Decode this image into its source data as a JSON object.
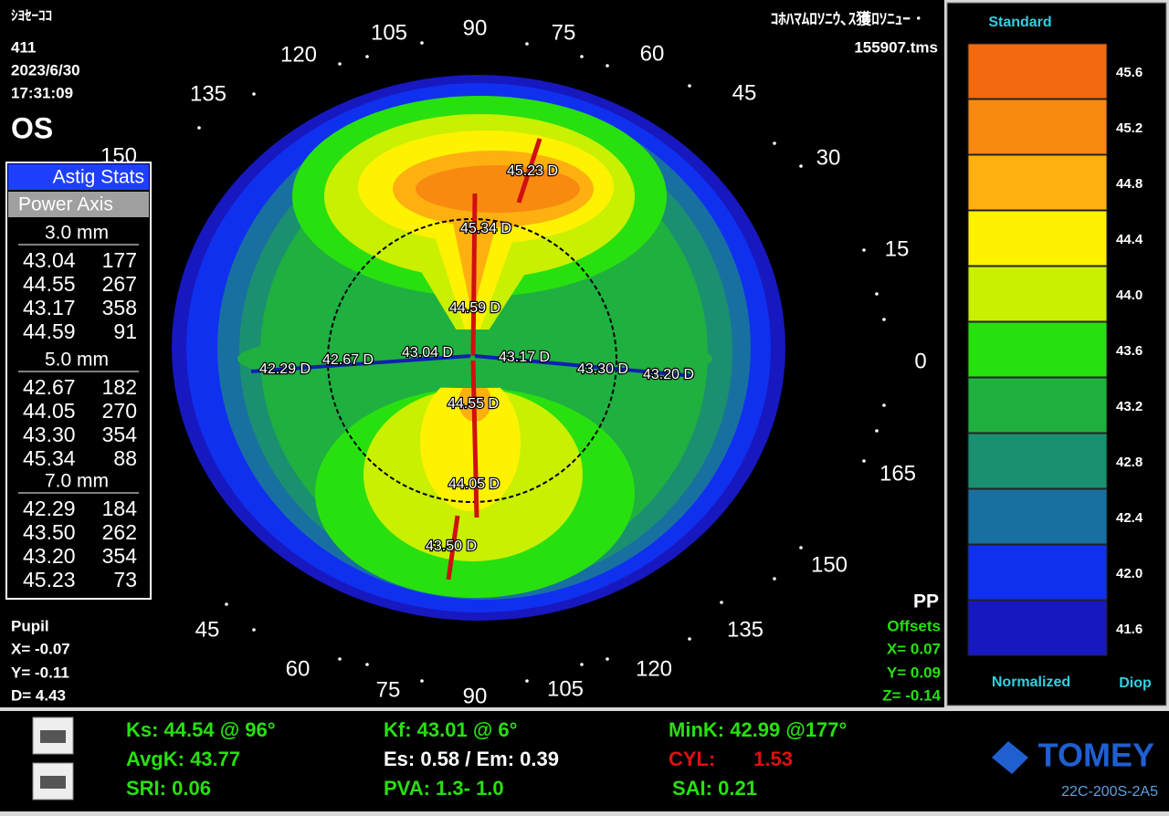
{
  "header": {
    "name": "ｼﾖｾｰｺｺ",
    "id": "411",
    "date": "2023/6/30",
    "time": "17:31:09",
    "eye": "OS",
    "device_text": "ｺﾎﾊﾏﾑﾛｿﾆｳ､ｽ獲ﾛｿﾆｭｰ ･",
    "file": "155907.tms"
  },
  "astig_stats": {
    "title": "Astig Stats",
    "columns": "Power Axis",
    "zones": [
      {
        "label": "3.0 mm",
        "rows": [
          [
            "43.04",
            "177"
          ],
          [
            "44.55",
            "267"
          ],
          [
            "43.17",
            "358"
          ],
          [
            "44.59",
            "91"
          ]
        ]
      },
      {
        "label": "5.0 mm",
        "rows": [
          [
            "42.67",
            "182"
          ],
          [
            "44.05",
            "270"
          ],
          [
            "43.30",
            "354"
          ],
          [
            "45.34",
            "88"
          ]
        ]
      },
      {
        "label": "7.0 mm",
        "rows": [
          [
            "42.29",
            "184"
          ],
          [
            "43.50",
            "262"
          ],
          [
            "43.20",
            "354"
          ],
          [
            "45.23",
            "73"
          ]
        ]
      }
    ]
  },
  "angle_labels": [
    "150",
    "135",
    "120",
    "105",
    "90",
    "75",
    "60",
    "45",
    "30",
    "15",
    "0",
    "165",
    "150",
    "135",
    "120",
    "105",
    "90",
    "75",
    "60",
    "45"
  ],
  "map_labels": [
    "45.23 D",
    "45.34 D",
    "44.59 D",
    "42.29 D",
    "42.67 D",
    "43.04 D",
    "43.17 D",
    "43.30 D",
    "43.20 D",
    "44.55 D",
    "44.05 D",
    "43.50 D"
  ],
  "pupil": {
    "title": "Pupil",
    "x": "X= -0.07",
    "y": "Y= -0.11",
    "d": "D=  4.43"
  },
  "offsets": {
    "pp": "PP",
    "title": "Offsets",
    "x": "X=  0.07",
    "y": "Y=  0.09",
    "z": "Z= -0.14"
  },
  "scale": {
    "title": "Standard",
    "values": [
      "45.6",
      "45.2",
      "44.8",
      "44.4",
      "44.0",
      "43.6",
      "43.2",
      "42.8",
      "42.4",
      "42.0",
      "41.6"
    ],
    "footer_left": "Normalized",
    "footer_right": "Diop"
  },
  "indices": {
    "ks": "Ks: 44.54 @ 96°",
    "avgk": "AvgK: 43.77",
    "sri": "SRI: 0.06",
    "kf": "Kf: 43.01 @  6°",
    "es_em": "Es: 0.58 / Em: 0.39",
    "pva": "PVA:   1.3-  1.0",
    "mink": "MinK: 42.99 @177°",
    "cyl_label": "CYL:",
    "cyl": "1.53",
    "sai": "SAI: 0.21"
  },
  "brand": {
    "logo": "TOMEY",
    "code": "22C-200S-2A5"
  }
}
